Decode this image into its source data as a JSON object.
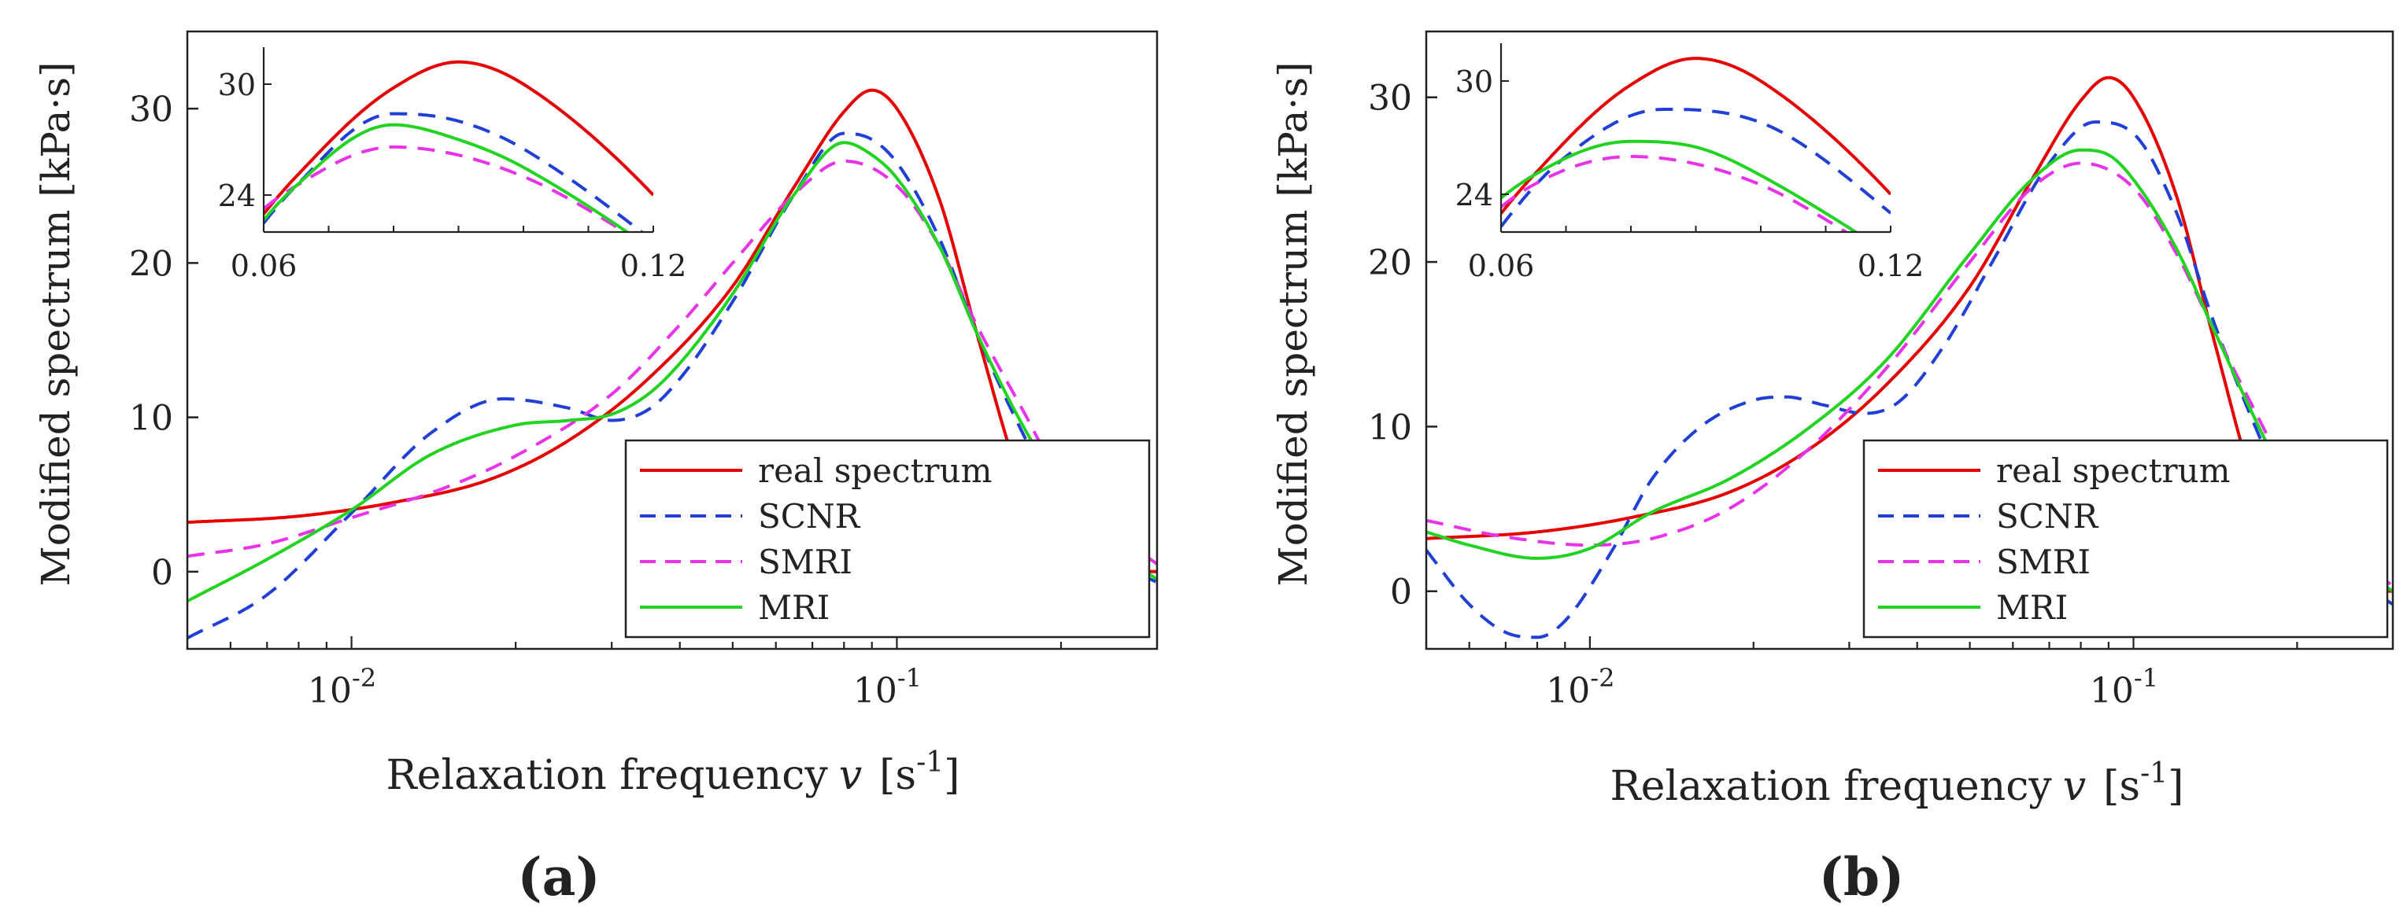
{
  "chart_data": [
    {
      "type": "line",
      "panel_label": "(a)",
      "xlabel": "Relaxation frequency",
      "xlabel_var": "v",
      "xlabel_unit_open": "[s",
      "xlabel_unit_exp": "-1",
      "xlabel_unit_close": "]",
      "ylabel": "Modified spectrum  [kPa·s]",
      "xscale": "log",
      "xlim": [
        0.005,
        0.3
      ],
      "ylim": [
        -5,
        35
      ],
      "yticks": [
        0,
        10,
        20,
        30
      ],
      "xticks": [
        {
          "base": "10",
          "exp": "-2"
        },
        {
          "base": "10",
          "exp": "-1"
        }
      ],
      "legend": {
        "location": "lower-right",
        "entries": [
          "real spectrum",
          "SCNR",
          "SMRI",
          "MRI"
        ]
      },
      "series": [
        {
          "name": "real spectrum",
          "color": "#e60000",
          "style": "solid",
          "x": [
            0.005,
            0.008,
            0.012,
            0.018,
            0.025,
            0.035,
            0.05,
            0.065,
            0.08,
            0.09,
            0.1,
            0.12,
            0.14,
            0.17,
            0.2,
            0.25,
            0.3
          ],
          "y": [
            3.2,
            3.6,
            4.5,
            6.0,
            8.5,
            12.5,
            18.5,
            25.0,
            29.8,
            31.2,
            30.0,
            24.0,
            15.5,
            5.5,
            0.6,
            0.1,
            0.0
          ]
        },
        {
          "name": "SCNR",
          "color": "#1f3fd6",
          "style": "dashed",
          "x": [
            0.005,
            0.007,
            0.01,
            0.014,
            0.019,
            0.025,
            0.03,
            0.035,
            0.04,
            0.05,
            0.065,
            0.08,
            0.09,
            0.1,
            0.12,
            0.14,
            0.17,
            0.2,
            0.25,
            0.3
          ],
          "y": [
            -4.3,
            -1.5,
            3.8,
            9.0,
            11.2,
            10.6,
            9.8,
            10.5,
            12.5,
            17.5,
            24.5,
            28.4,
            28.0,
            26.5,
            21.5,
            15.5,
            9.0,
            4.5,
            0.8,
            -0.7
          ]
        },
        {
          "name": "SMRI",
          "color": "#e833e8",
          "style": "dashed",
          "x": [
            0.005,
            0.007,
            0.01,
            0.015,
            0.02,
            0.03,
            0.04,
            0.05,
            0.065,
            0.08,
            0.1,
            0.12,
            0.14,
            0.17,
            0.2,
            0.25,
            0.3
          ],
          "y": [
            1.0,
            1.8,
            3.5,
            5.5,
            7.5,
            11.5,
            16.0,
            20.0,
            24.5,
            26.6,
            25.0,
            21.0,
            16.0,
            10.5,
            6.0,
            2.5,
            0.5
          ]
        },
        {
          "name": "MRI",
          "color": "#22d322",
          "style": "solid",
          "x": [
            0.005,
            0.007,
            0.01,
            0.014,
            0.02,
            0.025,
            0.03,
            0.035,
            0.04,
            0.05,
            0.065,
            0.08,
            0.09,
            0.1,
            0.12,
            0.14,
            0.17,
            0.2,
            0.25,
            0.3
          ],
          "y": [
            -1.9,
            0.8,
            4.0,
            7.6,
            9.5,
            9.8,
            10.2,
            11.5,
            13.5,
            18.0,
            24.5,
            27.8,
            27.0,
            25.5,
            21.0,
            15.5,
            9.5,
            5.5,
            1.5,
            -0.5
          ]
        }
      ],
      "inset": {
        "xlim": [
          0.06,
          0.12
        ],
        "ylim": [
          22,
          32
        ],
        "xticks": [
          0.06,
          0.12
        ],
        "yticks": [
          24,
          30
        ],
        "xtick_labels": [
          "0.06",
          "0.12"
        ],
        "ytick_labels": [
          "24",
          "30"
        ]
      }
    },
    {
      "type": "line",
      "panel_label": "(b)",
      "xlabel": "Relaxation frequency",
      "xlabel_var": "v",
      "xlabel_unit_open": "[s",
      "xlabel_unit_exp": "-1",
      "xlabel_unit_close": "]",
      "ylabel": "Modified spectrum  [kPa·s]",
      "xscale": "log",
      "xlim": [
        0.005,
        0.3
      ],
      "ylim": [
        -3.5,
        34
      ],
      "yticks": [
        0,
        10,
        20,
        30
      ],
      "xticks": [
        {
          "base": "10",
          "exp": "-2"
        },
        {
          "base": "10",
          "exp": "-1"
        }
      ],
      "legend": {
        "location": "lower-right",
        "entries": [
          "real spectrum",
          "SCNR",
          "SMRI",
          "MRI"
        ]
      },
      "series": [
        {
          "name": "real spectrum",
          "color": "#e60000",
          "style": "solid",
          "x": [
            0.005,
            0.008,
            0.012,
            0.018,
            0.025,
            0.035,
            0.05,
            0.065,
            0.08,
            0.09,
            0.1,
            0.12,
            0.14,
            0.17,
            0.2,
            0.25,
            0.3
          ],
          "y": [
            3.2,
            3.6,
            4.5,
            6.0,
            8.5,
            12.5,
            18.5,
            25.0,
            29.8,
            31.2,
            30.0,
            24.0,
            15.5,
            5.5,
            0.6,
            0.1,
            0.0
          ]
        },
        {
          "name": "SCNR",
          "color": "#1f3fd6",
          "style": "dashed",
          "x": [
            0.005,
            0.006,
            0.007,
            0.008,
            0.009,
            0.011,
            0.013,
            0.016,
            0.02,
            0.023,
            0.027,
            0.032,
            0.037,
            0.045,
            0.055,
            0.07,
            0.085,
            0.1,
            0.12,
            0.14,
            0.17,
            0.2,
            0.25,
            0.3
          ],
          "y": [
            2.5,
            -0.8,
            -2.5,
            -2.8,
            -1.8,
            2.5,
            6.8,
            10.0,
            11.6,
            11.8,
            11.3,
            10.8,
            11.5,
            15.0,
            20.0,
            26.0,
            28.5,
            27.8,
            23.0,
            16.5,
            9.5,
            4.5,
            1.0,
            -0.8
          ]
        },
        {
          "name": "SMRI",
          "color": "#e833e8",
          "style": "dashed",
          "x": [
            0.005,
            0.007,
            0.01,
            0.013,
            0.018,
            0.025,
            0.035,
            0.05,
            0.065,
            0.08,
            0.1,
            0.12,
            0.14,
            0.17,
            0.2,
            0.25,
            0.3
          ],
          "y": [
            4.3,
            3.3,
            2.8,
            3.2,
            5.0,
            8.5,
            13.5,
            20.0,
            24.5,
            26.0,
            24.5,
            20.5,
            16.0,
            10.5,
            6.0,
            2.5,
            0.3
          ]
        },
        {
          "name": "MRI",
          "color": "#22d322",
          "style": "solid",
          "x": [
            0.005,
            0.006,
            0.008,
            0.01,
            0.013,
            0.018,
            0.025,
            0.035,
            0.05,
            0.065,
            0.08,
            0.09,
            0.1,
            0.12,
            0.14,
            0.17,
            0.2,
            0.25,
            0.3
          ],
          "y": [
            3.6,
            2.8,
            2.0,
            2.6,
            4.8,
            6.8,
            9.8,
            14.0,
            20.5,
            25.0,
            26.8,
            26.5,
            25.0,
            20.8,
            16.0,
            10.0,
            5.5,
            1.8,
            0.0
          ]
        }
      ],
      "inset": {
        "xlim": [
          0.06,
          0.12
        ],
        "ylim": [
          22,
          32
        ],
        "xticks": [
          0.06,
          0.12
        ],
        "yticks": [
          24,
          30
        ],
        "xtick_labels": [
          "0.06",
          "0.12"
        ],
        "ytick_labels": [
          "24",
          "30"
        ]
      }
    }
  ]
}
